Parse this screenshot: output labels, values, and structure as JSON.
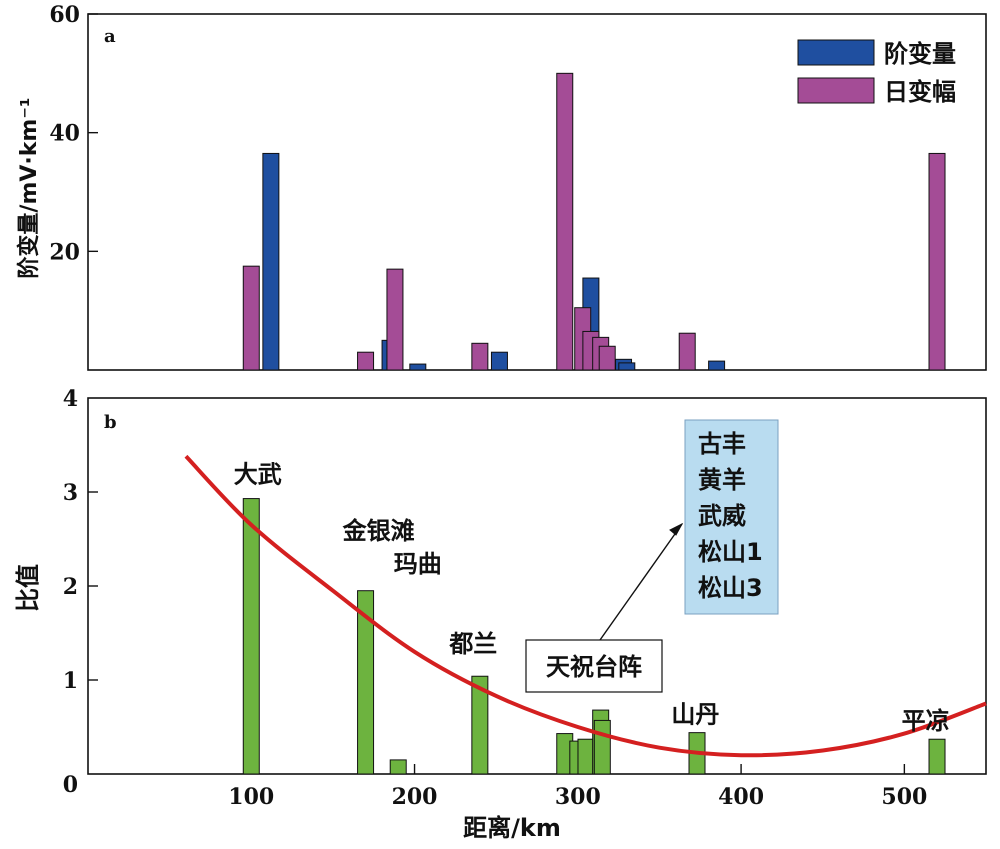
{
  "chart_data": [
    {
      "type": "bar",
      "panel_label": "a",
      "ylabel": "阶变量/mV·km⁻¹",
      "ylim": [
        0,
        60
      ],
      "yticks": [
        20,
        40,
        60
      ],
      "xlim": [
        0,
        550
      ],
      "grid": false,
      "legend": "top-right",
      "series": [
        {
          "name": "阶变量",
          "color": "#1f4fa0",
          "x": [
            112,
            185,
            202,
            252,
            308,
            328,
            330,
            385
          ],
          "values": [
            36.5,
            5,
            1,
            3,
            15.5,
            1.8,
            1.2,
            1.5
          ]
        },
        {
          "name": "日变幅",
          "color": "#a44c96",
          "x": [
            100,
            170,
            188,
            240,
            292,
            303,
            308,
            314,
            318,
            367,
            520
          ],
          "values": [
            17.5,
            3,
            17,
            4.5,
            50,
            10.5,
            6.5,
            5.5,
            4,
            6.2,
            36.5
          ]
        }
      ]
    },
    {
      "type": "bar",
      "panel_label": "b",
      "xlabel": "距离/km",
      "ylabel": "比值",
      "ylim": [
        0,
        4
      ],
      "yticks": [
        0,
        1,
        2,
        3,
        4
      ],
      "xlim": [
        0,
        550
      ],
      "xticks": [
        100,
        200,
        300,
        400,
        500
      ],
      "grid": false,
      "bar_color": "#6db33f",
      "bars": {
        "x": [
          100,
          170,
          190,
          240,
          292,
          300,
          305,
          314,
          315,
          373,
          520
        ],
        "values": [
          2.93,
          1.95,
          0.15,
          1.04,
          0.43,
          0.35,
          0.37,
          0.68,
          0.57,
          0.44,
          0.37
        ]
      },
      "curve": {
        "color": "#d42020",
        "x": [
          60,
          100,
          150,
          200,
          250,
          300,
          350,
          400,
          450,
          500,
          550
        ],
        "y": [
          3.38,
          2.65,
          1.95,
          1.3,
          0.83,
          0.5,
          0.28,
          0.2,
          0.25,
          0.43,
          0.75
        ]
      },
      "station_labels": [
        {
          "text": "大武",
          "x": 104,
          "y": 3.1
        },
        {
          "text": "金银滩",
          "x": 178,
          "y": 2.5
        },
        {
          "text": "玛曲",
          "x": 202,
          "y": 2.15
        },
        {
          "text": "都兰",
          "x": 236,
          "y": 1.3
        },
        {
          "text": "山丹",
          "x": 372,
          "y": 0.55
        },
        {
          "text": "平凉",
          "x": 513,
          "y": 0.48
        }
      ],
      "array_label": "天祝台阵",
      "array_stations": [
        "古丰",
        "黄羊",
        "武威",
        "松山1",
        "松山3"
      ]
    }
  ]
}
